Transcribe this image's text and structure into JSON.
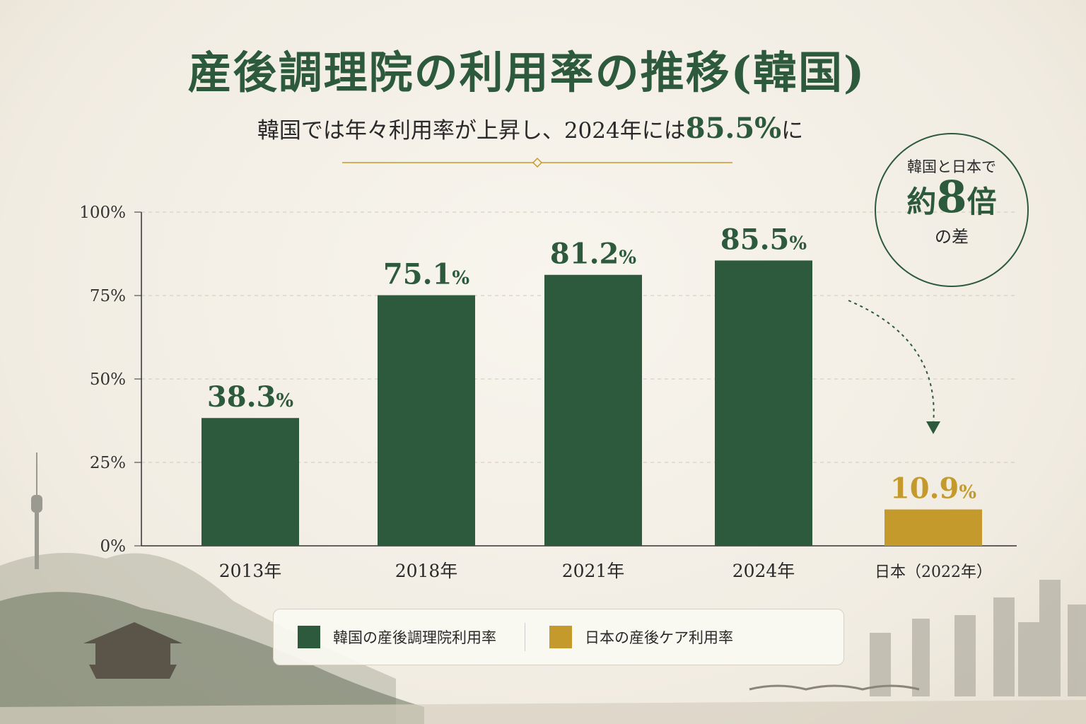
{
  "title": "産後調理院の利用率の推移(韓国)",
  "subtitle": {
    "prefix": "韓国では年々利用率が上昇し、2024年には",
    "highlight": "85.5%",
    "suffix": "に"
  },
  "badge": {
    "line1": "韓国と日本で",
    "line2_prefix": "約",
    "line2_number": "8",
    "line2_suffix": "倍",
    "line3": "の差"
  },
  "colors": {
    "korea": "#2d5a3c",
    "japan": "#c49a2c",
    "title": "#2d5a3c"
  },
  "chart_data": {
    "type": "bar",
    "categories": [
      "2013年",
      "2018年",
      "2021年",
      "2024年",
      "日本（2022年）"
    ],
    "values": [
      38.3,
      75.1,
      81.2,
      85.5,
      10.9
    ],
    "data_labels": [
      "38.3%",
      "75.1%",
      "81.2%",
      "85.5%",
      "10.9%"
    ],
    "bar_series": [
      "korea",
      "korea",
      "korea",
      "korea",
      "japan"
    ],
    "ylim": [
      0,
      100
    ],
    "yticks": [
      0,
      25,
      50,
      75,
      100
    ],
    "ytick_labels": [
      "0%",
      "25%",
      "50%",
      "75%",
      "100%"
    ],
    "grid": true,
    "legend_position": "bottom",
    "series": [
      {
        "name": "韓国の産後調理院利用率",
        "color": "#2d5a3c"
      },
      {
        "name": "日本の産後ケア利用率",
        "color": "#c49a2c"
      }
    ]
  }
}
